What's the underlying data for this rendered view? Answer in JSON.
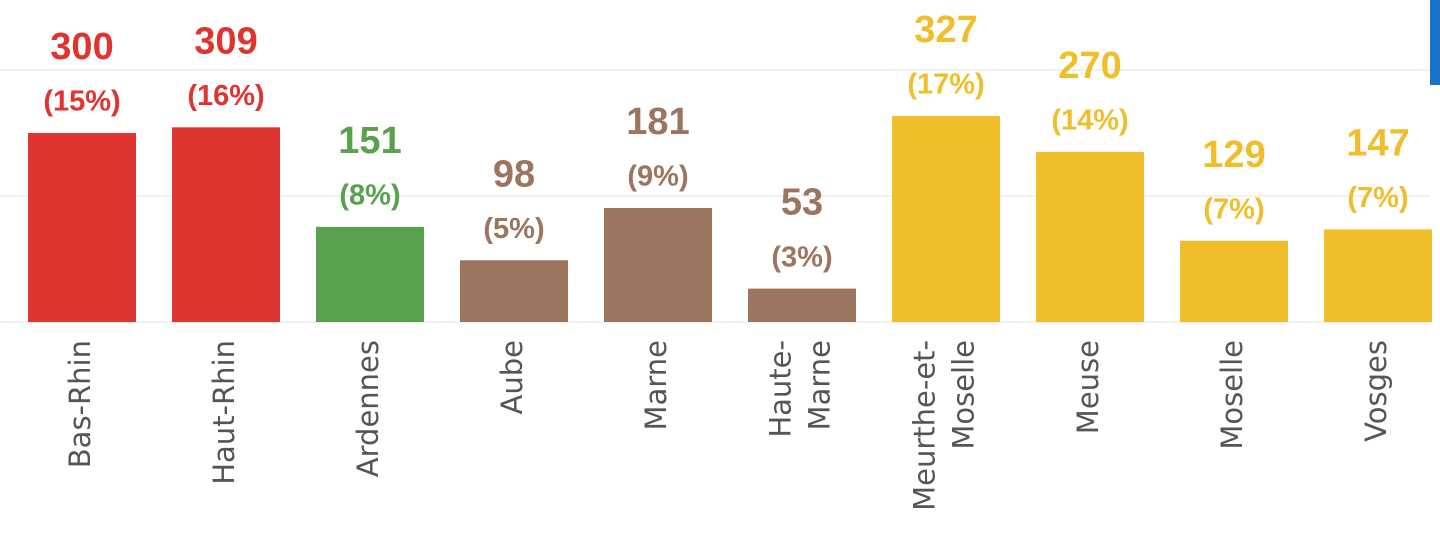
{
  "chart_data": {
    "type": "bar",
    "categories": [
      "Bas-Rhin",
      "Haut-Rhin",
      "Ardennes",
      "Aube",
      "Marne",
      "Haute-\nMarne",
      "Meurthe-et-\nMoselle",
      "Meuse",
      "Moselle",
      "Vosges"
    ],
    "values": [
      300,
      309,
      151,
      98,
      181,
      53,
      327,
      270,
      129,
      147
    ],
    "share_labels": [
      "(15%)",
      "(16%)",
      "(8%)",
      "(5%)",
      "(9%)",
      "(3%)",
      "(17%)",
      "(14%)",
      "(7%)",
      "(7%)"
    ],
    "colors": [
      "#e03431",
      "#e03431",
      "#59a14f",
      "#9c755f",
      "#9c755f",
      "#9c755f",
      "#f1be2b",
      "#f1be2b",
      "#f1be2b",
      "#f1be2b"
    ],
    "ylim": [
      0,
      400
    ],
    "yticks": [
      0,
      200,
      400
    ],
    "grid": true
  }
}
